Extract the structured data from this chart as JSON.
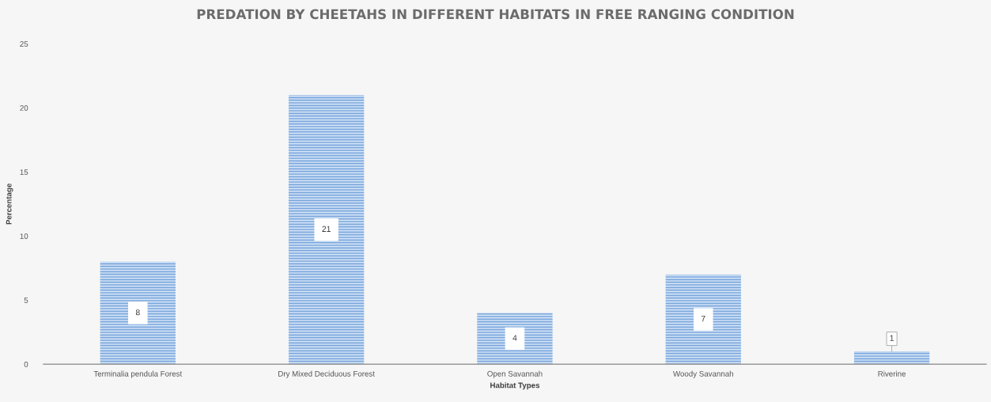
{
  "chart_data": {
    "type": "bar",
    "title": "PREDATION BY CHEETAHS IN DIFFERENT HABITATS IN FREE RANGING CONDITION",
    "xlabel": "Habitat Types",
    "ylabel": "Percentage",
    "categories": [
      "Terminalia pendula Forest",
      "Dry Mixed Deciduous Forest",
      "Open Savannah",
      "Woody Savannah",
      "Riverine"
    ],
    "values": [
      8,
      21,
      4,
      7,
      1
    ],
    "color": "#7aa7dd",
    "ylim": [
      0,
      25
    ],
    "yticks": [
      0,
      5,
      10,
      15,
      20,
      25
    ],
    "data_labels": true,
    "grid": false
  }
}
